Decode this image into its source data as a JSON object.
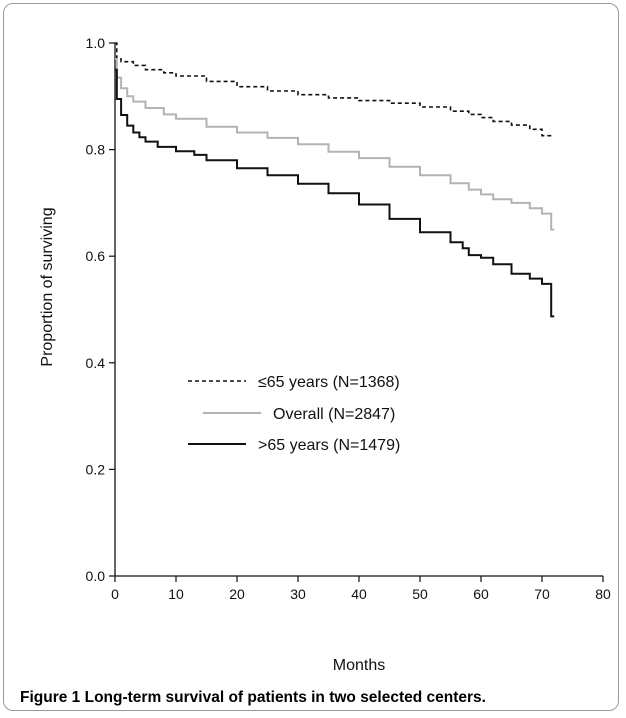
{
  "chart_data": {
    "type": "line",
    "title": "",
    "xlabel": "Months",
    "ylabel": "Proportion of surviving",
    "xlim": [
      0,
      80
    ],
    "ylim": [
      0.0,
      1.0
    ],
    "xticks": [
      "0",
      "10",
      "20",
      "30",
      "40",
      "50",
      "60",
      "70",
      "80"
    ],
    "yticks": [
      "0.0",
      "0.2",
      "0.4",
      "0.6",
      "0.8",
      "1.0"
    ],
    "grid": false,
    "legend": "center-left",
    "series": [
      {
        "name": "≤65 years (N=1368)",
        "style": "dashed",
        "color": "#111111",
        "x": [
          0,
          0.3,
          1,
          3,
          5,
          8,
          10,
          15,
          20,
          25,
          30,
          35,
          40,
          45,
          50,
          55,
          58,
          60,
          62,
          65,
          68,
          70,
          72
        ],
        "y": [
          1.0,
          0.97,
          0.965,
          0.958,
          0.95,
          0.944,
          0.938,
          0.928,
          0.918,
          0.91,
          0.903,
          0.897,
          0.892,
          0.887,
          0.88,
          0.872,
          0.866,
          0.86,
          0.853,
          0.846,
          0.838,
          0.826,
          0.826
        ]
      },
      {
        "name": "Overall (N=2847)",
        "style": "solid",
        "color": "#b3b3b3",
        "x": [
          0,
          0.3,
          1,
          2,
          3,
          5,
          8,
          10,
          15,
          20,
          25,
          30,
          35,
          40,
          45,
          50,
          55,
          58,
          60,
          62,
          65,
          68,
          70,
          71.5,
          72
        ],
        "y": [
          0.97,
          0.935,
          0.915,
          0.9,
          0.89,
          0.878,
          0.866,
          0.858,
          0.843,
          0.832,
          0.822,
          0.81,
          0.796,
          0.784,
          0.768,
          0.752,
          0.737,
          0.725,
          0.716,
          0.707,
          0.7,
          0.69,
          0.68,
          0.65,
          0.65
        ]
      },
      {
        "name": ">65 years (N=1479)",
        "style": "solid",
        "color": "#111111",
        "x": [
          0,
          0.3,
          1,
          2,
          3,
          4,
          5,
          7,
          10,
          13,
          15,
          20,
          25,
          30,
          35,
          40,
          45,
          50,
          55,
          57,
          58,
          60,
          62,
          65,
          68,
          70,
          71.5,
          72
        ],
        "y": [
          0.95,
          0.895,
          0.865,
          0.845,
          0.832,
          0.823,
          0.815,
          0.805,
          0.797,
          0.79,
          0.78,
          0.765,
          0.752,
          0.736,
          0.718,
          0.697,
          0.67,
          0.645,
          0.626,
          0.615,
          0.602,
          0.597,
          0.585,
          0.567,
          0.558,
          0.548,
          0.487,
          0.487
        ]
      }
    ]
  },
  "caption": {
    "label": "Figure 1",
    "text": "Long-term survival of patients in two selected centers."
  }
}
